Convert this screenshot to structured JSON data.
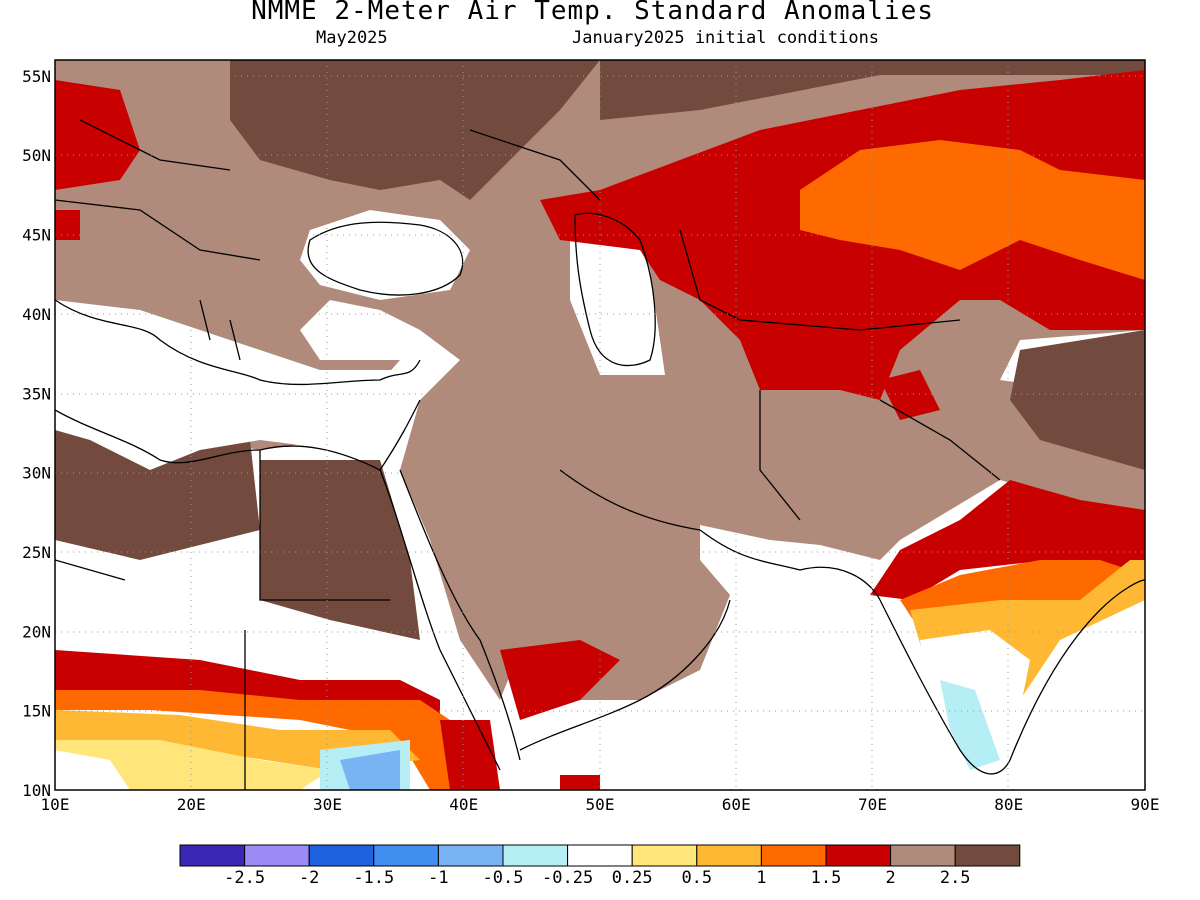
{
  "header": {
    "title": "NMME 2-Meter Air Temp. Standard Anomalies",
    "target_month": "May2025",
    "initial_conditions": "January2025 initial conditions"
  },
  "map": {
    "lon_range": [
      10,
      90
    ],
    "lat_range": [
      10,
      56
    ],
    "x_ticks": [
      "10E",
      "20E",
      "30E",
      "40E",
      "50E",
      "60E",
      "70E",
      "80E",
      "90E"
    ],
    "y_ticks": [
      "10N",
      "15N",
      "20N",
      "25N",
      "30N",
      "35N",
      "40N",
      "45N",
      "50N",
      "55N"
    ],
    "grid": "dotted"
  },
  "legend": {
    "colors": [
      "#3a27b5",
      "#9c8af5",
      "#1f62e0",
      "#3f8ef0",
      "#78b4f4",
      "#b6eef6",
      "#ffffff",
      "#ffe57a",
      "#ffb833",
      "#ff6a00",
      "#c80000",
      "#b08a7a",
      "#734a3e"
    ],
    "labels": [
      "-2.5",
      "-2",
      "-1.5",
      "-1",
      "-0.5",
      "-0.25",
      "0.25",
      "0.5",
      "1",
      "1.5",
      "2",
      "2.5"
    ]
  }
}
